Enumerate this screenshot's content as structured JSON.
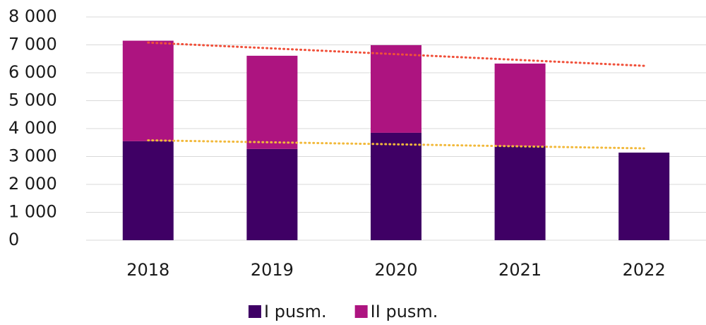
{
  "chart_data": {
    "type": "stacked_bar",
    "categories": [
      "2018",
      "2019",
      "2020",
      "2021",
      "2022"
    ],
    "series": [
      {
        "name": "I pusm.",
        "color": "#3f0065",
        "values": [
          3550,
          3270,
          3850,
          3370,
          3140
        ],
        "trend_color": "#f2b93b"
      },
      {
        "name": "II pusm.",
        "color": "#ad1480",
        "values": [
          3600,
          3340,
          3140,
          2960,
          null
        ]
      }
    ],
    "total_trend_color": "#f0503a",
    "ylim": [
      0,
      8000
    ],
    "yticks": [
      0,
      {
        "value": 1000,
        "label": "1 000"
      },
      {
        "value": 2000,
        "label": "2 000"
      },
      {
        "value": 3000,
        "label": "3 000"
      },
      {
        "value": 4000,
        "label": "4 000"
      },
      {
        "value": 5000,
        "label": "5 000"
      },
      {
        "value": 6000,
        "label": "6 000"
      },
      {
        "value": 7000,
        "label": "7 000"
      },
      {
        "value": 8000,
        "label": "8 000"
      }
    ],
    "grid": true,
    "legend": "bottom"
  }
}
